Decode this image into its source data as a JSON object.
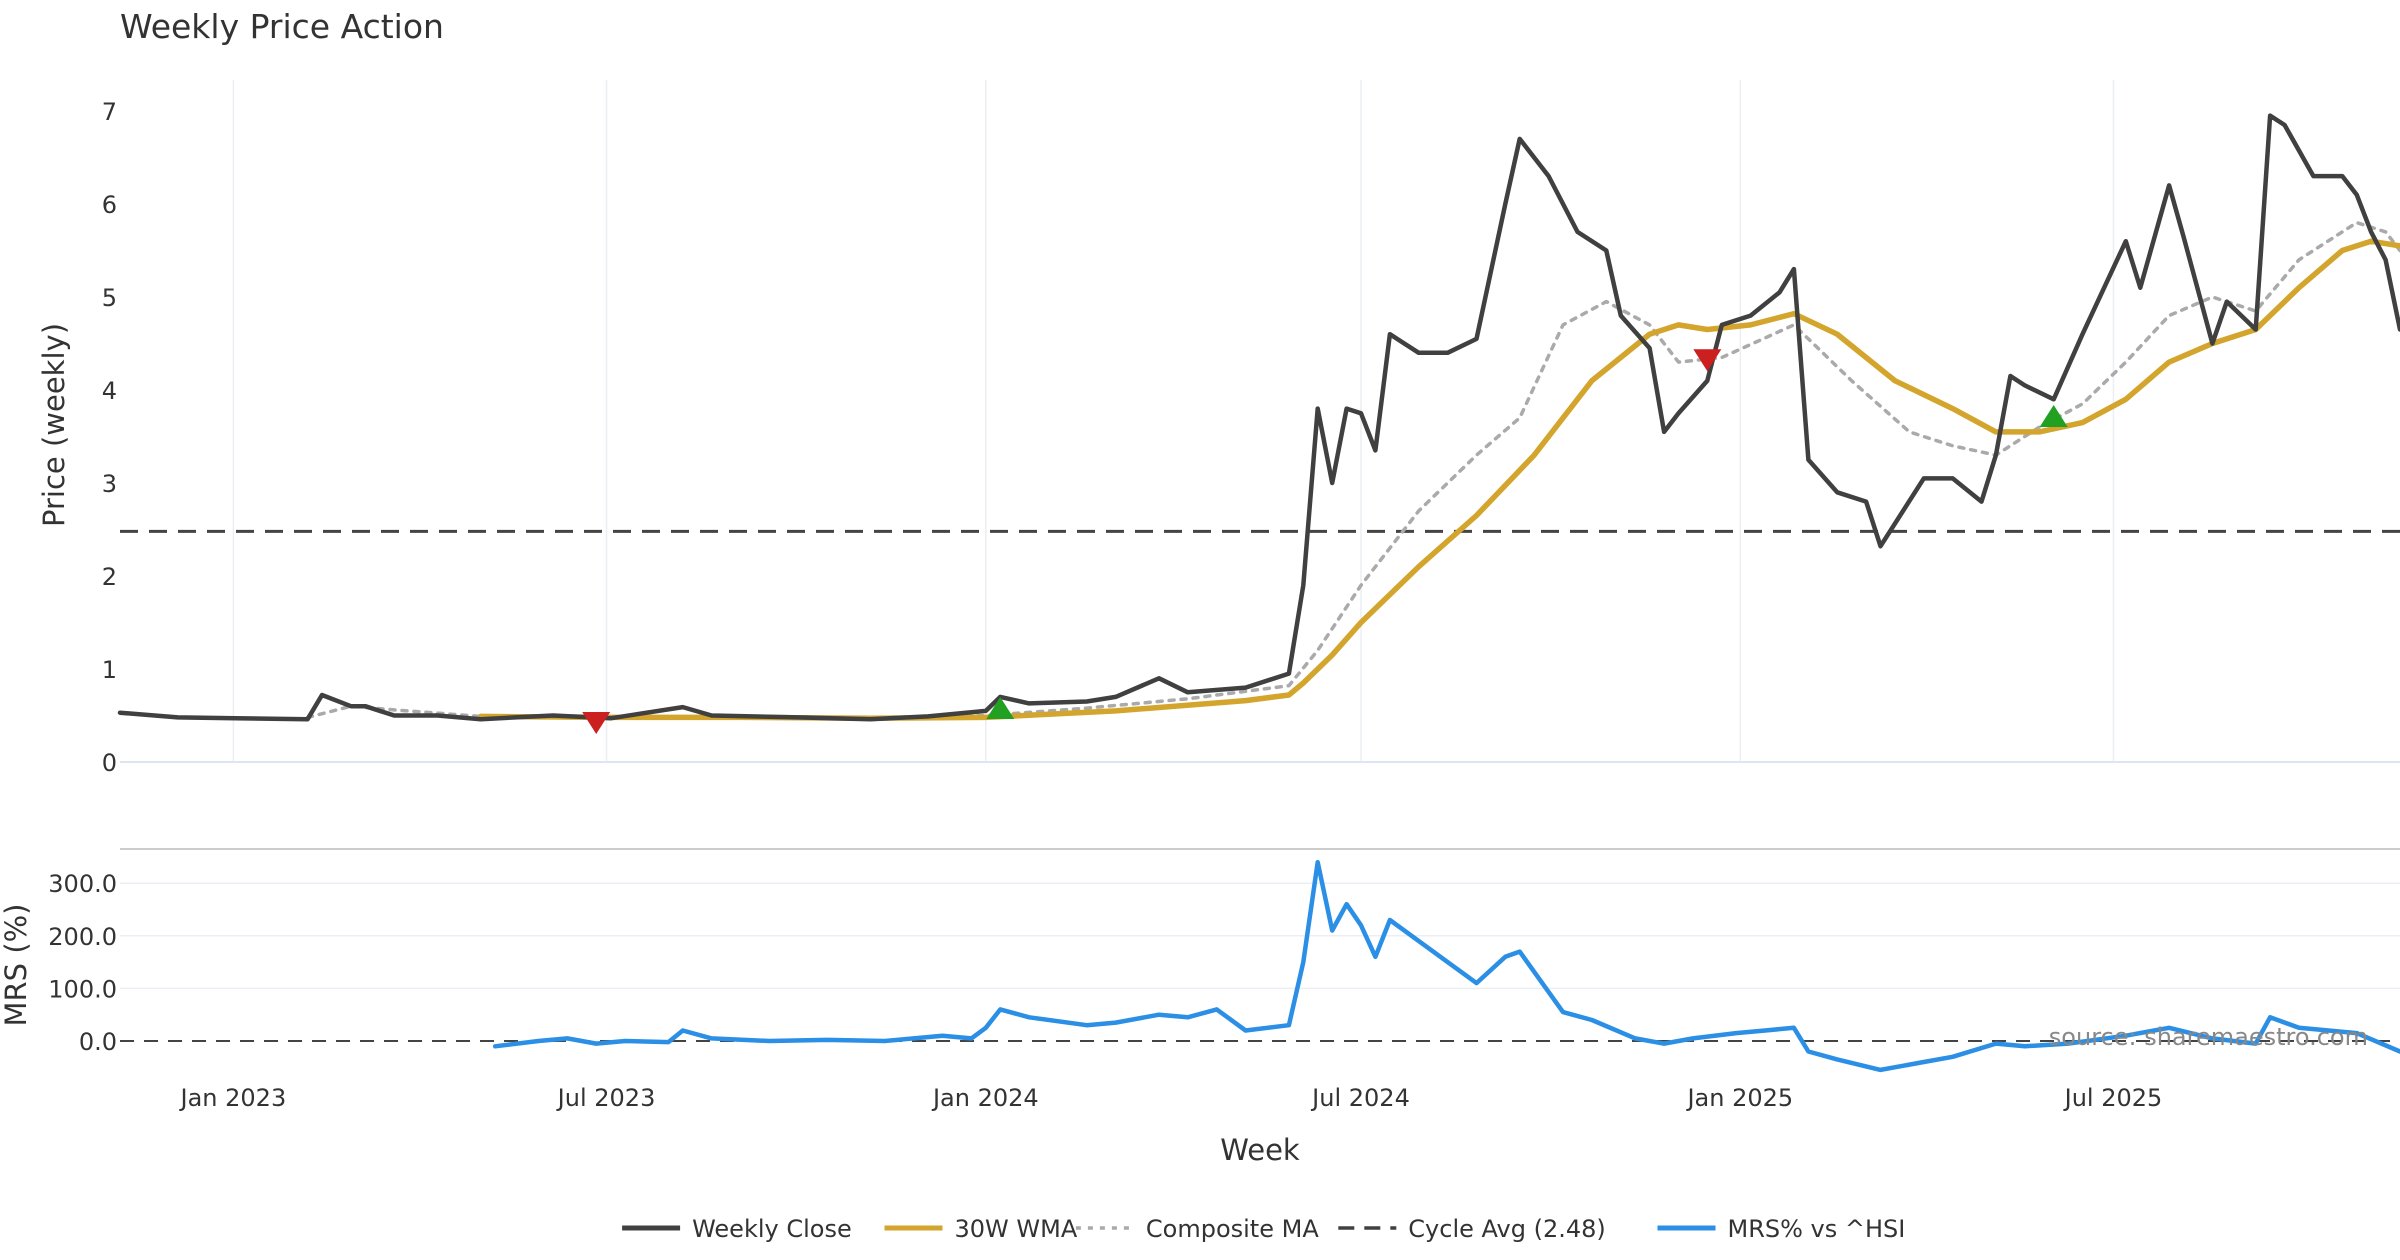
{
  "chart_data": {
    "type": "line",
    "title": "Weekly Price Action",
    "source": "source: sharemaestro.com",
    "xlabel": "Week",
    "x_ticks": [
      "Jan 2023",
      "Jul 2023",
      "Jan 2024",
      "Jul 2024",
      "Jan 2025",
      "Jul 2025"
    ],
    "x_range": [
      "2022-11-07",
      "2025-11-17"
    ],
    "price_panel": {
      "ylabel": "Price (weekly)",
      "ylim": [
        0,
        7.3
      ],
      "y_ticks": [
        "0",
        "1",
        "2",
        "3",
        "4",
        "5",
        "6",
        "7"
      ],
      "cycle_avg": 2.48,
      "series": [
        {
          "name": "Weekly Close",
          "color": "#404040",
          "style": "solid",
          "points": [
            [
              "2022-11-07",
              0.53
            ],
            [
              "2022-12-05",
              0.48
            ],
            [
              "2023-01-02",
              0.47
            ],
            [
              "2023-02-06",
              0.46
            ],
            [
              "2023-02-13",
              0.72
            ],
            [
              "2023-02-27",
              0.6
            ],
            [
              "2023-03-06",
              0.6
            ],
            [
              "2023-03-20",
              0.5
            ],
            [
              "2023-04-10",
              0.5
            ],
            [
              "2023-05-01",
              0.46
            ],
            [
              "2023-06-05",
              0.5
            ],
            [
              "2023-07-03",
              0.47
            ],
            [
              "2023-08-07",
              0.59
            ],
            [
              "2023-08-21",
              0.5
            ],
            [
              "2023-10-02",
              0.48
            ],
            [
              "2023-11-06",
              0.46
            ],
            [
              "2023-12-04",
              0.49
            ],
            [
              "2024-01-01",
              0.55
            ],
            [
              "2024-01-08",
              0.7
            ],
            [
              "2024-01-22",
              0.63
            ],
            [
              "2024-02-19",
              0.65
            ],
            [
              "2024-03-04",
              0.7
            ],
            [
              "2024-03-25",
              0.9
            ],
            [
              "2024-04-08",
              0.75
            ],
            [
              "2024-05-06",
              0.8
            ],
            [
              "2024-05-27",
              0.95
            ],
            [
              "2024-06-03",
              1.9
            ],
            [
              "2024-06-10",
              3.8
            ],
            [
              "2024-06-17",
              3.0
            ],
            [
              "2024-06-24",
              3.8
            ],
            [
              "2024-07-01",
              3.75
            ],
            [
              "2024-07-08",
              3.35
            ],
            [
              "2024-07-15",
              4.6
            ],
            [
              "2024-07-29",
              4.4
            ],
            [
              "2024-08-12",
              4.4
            ],
            [
              "2024-08-26",
              4.55
            ],
            [
              "2024-09-09",
              6.0
            ],
            [
              "2024-09-16",
              6.7
            ],
            [
              "2024-09-30",
              6.3
            ],
            [
              "2024-10-14",
              5.7
            ],
            [
              "2024-10-28",
              5.5
            ],
            [
              "2024-11-04",
              4.8
            ],
            [
              "2024-11-18",
              4.45
            ],
            [
              "2024-11-25",
              3.55
            ],
            [
              "2024-12-02",
              3.75
            ],
            [
              "2024-12-16",
              4.1
            ],
            [
              "2024-12-23",
              4.7
            ],
            [
              "2025-01-06",
              4.8
            ],
            [
              "2025-01-20",
              5.05
            ],
            [
              "2025-01-27",
              5.3
            ],
            [
              "2025-02-03",
              3.25
            ],
            [
              "2025-02-17",
              2.9
            ],
            [
              "2025-03-03",
              2.8
            ],
            [
              "2025-03-10",
              2.32
            ],
            [
              "2025-03-31",
              3.05
            ],
            [
              "2025-04-14",
              3.05
            ],
            [
              "2025-04-28",
              2.8
            ],
            [
              "2025-05-05",
              3.3
            ],
            [
              "2025-05-12",
              4.15
            ],
            [
              "2025-05-19",
              4.05
            ],
            [
              "2025-06-02",
              3.9
            ],
            [
              "2025-06-16",
              4.6
            ],
            [
              "2025-07-07",
              5.6
            ],
            [
              "2025-07-14",
              5.1
            ],
            [
              "2025-07-28",
              6.2
            ],
            [
              "2025-08-04",
              5.65
            ],
            [
              "2025-08-18",
              4.5
            ],
            [
              "2025-08-25",
              4.95
            ],
            [
              "2025-09-08",
              4.65
            ],
            [
              "2025-09-15",
              6.95
            ],
            [
              "2025-09-22",
              6.85
            ],
            [
              "2025-10-06",
              6.3
            ],
            [
              "2025-10-20",
              6.3
            ],
            [
              "2025-10-27",
              6.1
            ],
            [
              "2025-11-03",
              5.7
            ],
            [
              "2025-11-10",
              5.4
            ],
            [
              "2025-11-17",
              4.65
            ]
          ]
        },
        {
          "name": "30W WMA",
          "color": "#d4a52c",
          "style": "solid",
          "points": [
            [
              "2023-05-01",
              0.49
            ],
            [
              "2023-07-03",
              0.48
            ],
            [
              "2023-09-04",
              0.48
            ],
            [
              "2023-11-06",
              0.47
            ],
            [
              "2024-01-01",
              0.48
            ],
            [
              "2024-03-04",
              0.55
            ],
            [
              "2024-05-06",
              0.66
            ],
            [
              "2024-05-27",
              0.72
            ],
            [
              "2024-06-03",
              0.85
            ],
            [
              "2024-06-17",
              1.15
            ],
            [
              "2024-07-01",
              1.5
            ],
            [
              "2024-07-29",
              2.1
            ],
            [
              "2024-08-26",
              2.65
            ],
            [
              "2024-09-23",
              3.3
            ],
            [
              "2024-10-21",
              4.1
            ],
            [
              "2024-11-18",
              4.6
            ],
            [
              "2024-12-02",
              4.7
            ],
            [
              "2024-12-16",
              4.65
            ],
            [
              "2025-01-06",
              4.7
            ],
            [
              "2025-01-27",
              4.82
            ],
            [
              "2025-02-17",
              4.6
            ],
            [
              "2025-03-17",
              4.1
            ],
            [
              "2025-04-14",
              3.8
            ],
            [
              "2025-05-05",
              3.55
            ],
            [
              "2025-05-26",
              3.55
            ],
            [
              "2025-06-16",
              3.65
            ],
            [
              "2025-07-07",
              3.9
            ],
            [
              "2025-07-28",
              4.3
            ],
            [
              "2025-08-18",
              4.5
            ],
            [
              "2025-09-08",
              4.65
            ],
            [
              "2025-09-29",
              5.1
            ],
            [
              "2025-10-20",
              5.5
            ],
            [
              "2025-11-03",
              5.6
            ],
            [
              "2025-11-17",
              5.55
            ]
          ]
        },
        {
          "name": "Composite MA",
          "color": "#aaaaaa",
          "style": "dotted",
          "points": [
            [
              "2023-02-06",
              0.48
            ],
            [
              "2023-02-27",
              0.6
            ],
            [
              "2023-03-20",
              0.56
            ],
            [
              "2023-05-01",
              0.49
            ],
            [
              "2023-07-03",
              0.48
            ],
            [
              "2023-09-04",
              0.48
            ],
            [
              "2023-11-06",
              0.47
            ],
            [
              "2024-01-01",
              0.5
            ],
            [
              "2024-02-19",
              0.58
            ],
            [
              "2024-04-08",
              0.68
            ],
            [
              "2024-05-27",
              0.82
            ],
            [
              "2024-06-10",
              1.2
            ],
            [
              "2024-07-01",
              1.9
            ],
            [
              "2024-07-29",
              2.7
            ],
            [
              "2024-08-26",
              3.3
            ],
            [
              "2024-09-16",
              3.7
            ],
            [
              "2024-10-07",
              4.7
            ],
            [
              "2024-10-28",
              4.95
            ],
            [
              "2024-11-18",
              4.7
            ],
            [
              "2024-12-02",
              4.3
            ],
            [
              "2024-12-23",
              4.35
            ],
            [
              "2025-01-27",
              4.7
            ],
            [
              "2025-02-24",
              4.1
            ],
            [
              "2025-03-24",
              3.55
            ],
            [
              "2025-04-14",
              3.4
            ],
            [
              "2025-05-05",
              3.3
            ],
            [
              "2025-05-26",
              3.6
            ],
            [
              "2025-06-16",
              3.85
            ],
            [
              "2025-07-07",
              4.3
            ],
            [
              "2025-07-28",
              4.8
            ],
            [
              "2025-08-18",
              5.0
            ],
            [
              "2025-09-08",
              4.85
            ],
            [
              "2025-09-29",
              5.4
            ],
            [
              "2025-10-20",
              5.7
            ],
            [
              "2025-10-27",
              5.8
            ],
            [
              "2025-11-10",
              5.7
            ],
            [
              "2025-11-17",
              5.5
            ]
          ]
        }
      ],
      "markers": [
        {
          "type": "sell",
          "date": "2023-06-26",
          "price": 0.42,
          "color": "#cc1f1f"
        },
        {
          "type": "buy",
          "date": "2024-01-08",
          "price": 0.58,
          "color": "#22a022"
        },
        {
          "type": "sell",
          "date": "2024-12-16",
          "price": 4.32,
          "color": "#cc1f1f"
        },
        {
          "type": "buy",
          "date": "2025-06-02",
          "price": 3.72,
          "color": "#22a022"
        }
      ]
    },
    "mrs_panel": {
      "ylabel": "MRS (%)",
      "ylim": [
        -60,
        360
      ],
      "y_ticks": [
        "0.0",
        "100.0",
        "200.0",
        "300.0"
      ],
      "zero_line": 0,
      "series": [
        {
          "name": "MRS% vs ^HSI",
          "color": "#2b8fe6",
          "style": "solid",
          "points": [
            [
              "2023-05-08",
              -10
            ],
            [
              "2023-05-29",
              0
            ],
            [
              "2023-06-12",
              5
            ],
            [
              "2023-06-26",
              -5
            ],
            [
              "2023-07-10",
              0
            ],
            [
              "2023-07-31",
              -2
            ],
            [
              "2023-08-07",
              20
            ],
            [
              "2023-08-21",
              5
            ],
            [
              "2023-09-18",
              0
            ],
            [
              "2023-10-16",
              2
            ],
            [
              "2023-11-13",
              0
            ],
            [
              "2023-12-11",
              10
            ],
            [
              "2023-12-25",
              5
            ],
            [
              "2024-01-01",
              25
            ],
            [
              "2024-01-08",
              60
            ],
            [
              "2024-01-22",
              45
            ],
            [
              "2024-02-19",
              30
            ],
            [
              "2024-03-04",
              35
            ],
            [
              "2024-03-25",
              50
            ],
            [
              "2024-04-08",
              45
            ],
            [
              "2024-04-22",
              60
            ],
            [
              "2024-05-06",
              20
            ],
            [
              "2024-05-27",
              30
            ],
            [
              "2024-06-03",
              150
            ],
            [
              "2024-06-10",
              340
            ],
            [
              "2024-06-17",
              210
            ],
            [
              "2024-06-24",
              260
            ],
            [
              "2024-07-01",
              220
            ],
            [
              "2024-07-08",
              160
            ],
            [
              "2024-07-15",
              230
            ],
            [
              "2024-08-12",
              150
            ],
            [
              "2024-08-26",
              110
            ],
            [
              "2024-09-09",
              160
            ],
            [
              "2024-09-16",
              170
            ],
            [
              "2024-10-07",
              55
            ],
            [
              "2024-10-21",
              40
            ],
            [
              "2024-11-11",
              5
            ],
            [
              "2024-11-25",
              -5
            ],
            [
              "2024-12-09",
              5
            ],
            [
              "2024-12-30",
              15
            ],
            [
              "2025-01-13",
              20
            ],
            [
              "2025-01-27",
              25
            ],
            [
              "2025-02-03",
              -20
            ],
            [
              "2025-02-17",
              -35
            ],
            [
              "2025-03-10",
              -55
            ],
            [
              "2025-03-31",
              -40
            ],
            [
              "2025-04-14",
              -30
            ],
            [
              "2025-05-05",
              -5
            ],
            [
              "2025-05-19",
              -10
            ],
            [
              "2025-06-09",
              -5
            ],
            [
              "2025-07-07",
              10
            ],
            [
              "2025-07-28",
              25
            ],
            [
              "2025-08-18",
              5
            ],
            [
              "2025-09-08",
              -5
            ],
            [
              "2025-09-15",
              45
            ],
            [
              "2025-09-29",
              25
            ],
            [
              "2025-10-27",
              15
            ],
            [
              "2025-11-17",
              -20
            ]
          ]
        }
      ]
    },
    "legend": {
      "placement": "bottom-center",
      "entries": [
        {
          "label": "Weekly Close",
          "color": "#404040",
          "style": "solid"
        },
        {
          "label": "30W WMA",
          "color": "#d4a52c",
          "style": "solid"
        },
        {
          "label": "Composite MA",
          "color": "#aaaaaa",
          "style": "dotted"
        },
        {
          "label": "Cycle Avg (2.48)",
          "color": "#404040",
          "style": "dashed"
        },
        {
          "label": "MRS% vs ^HSI",
          "color": "#2b8fe6",
          "style": "solid"
        }
      ]
    }
  }
}
